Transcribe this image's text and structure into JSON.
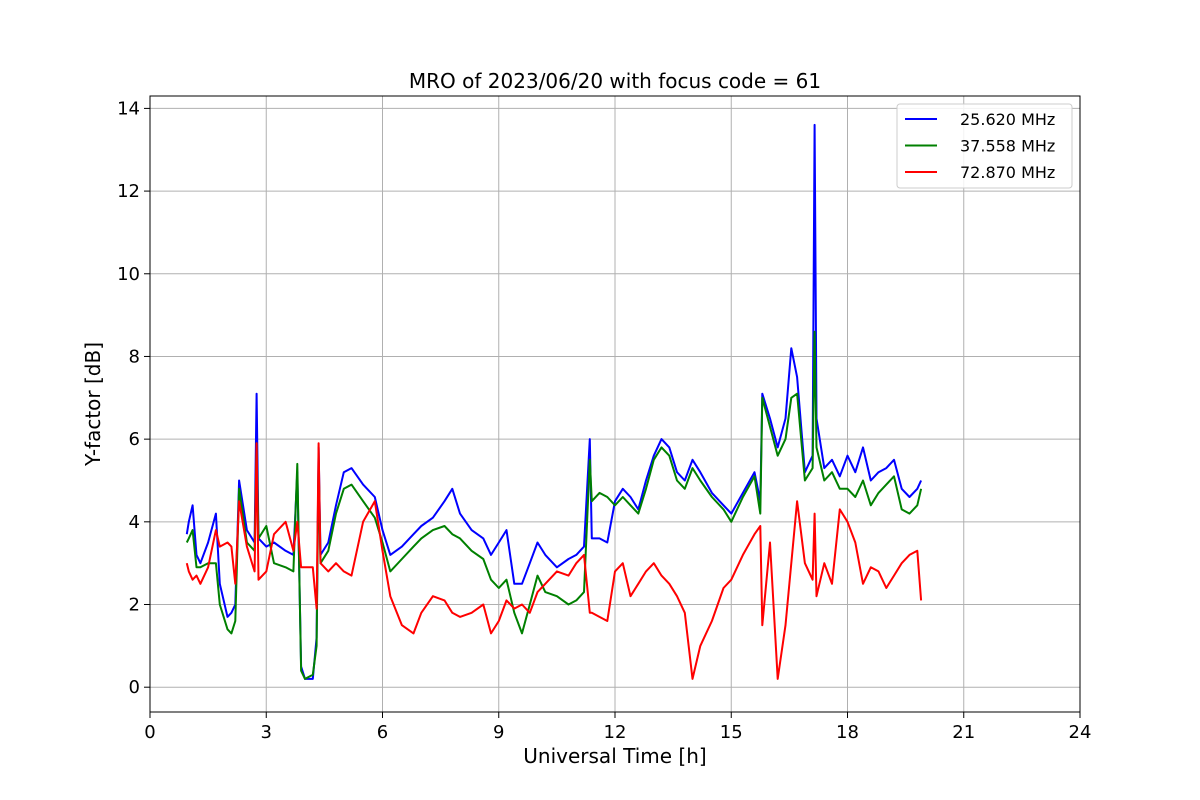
{
  "chart_data": {
    "type": "line",
    "title": "MRO of 2023/06/20 with focus code = 61",
    "xlabel": "Universal Time [h]",
    "ylabel": "Y-factor [dB]",
    "xlim": [
      0,
      24
    ],
    "ylim": [
      -0.6,
      14.3
    ],
    "xticks": [
      0,
      3,
      6,
      9,
      12,
      15,
      18,
      21,
      24
    ],
    "yticks": [
      0,
      2,
      4,
      6,
      8,
      10,
      12,
      14
    ],
    "grid": true,
    "legend_position": "top-right",
    "series": [
      {
        "name": "25.620 MHz",
        "color": "#0000ff",
        "x": [
          0.95,
          1.0,
          1.1,
          1.2,
          1.3,
          1.5,
          1.7,
          1.8,
          2.0,
          2.1,
          2.2,
          2.3,
          2.5,
          2.7,
          2.75,
          2.8,
          3.0,
          3.2,
          3.5,
          3.7,
          3.8,
          3.9,
          4.0,
          4.2,
          4.3,
          4.35,
          4.4,
          4.6,
          4.8,
          5.0,
          5.2,
          5.5,
          5.8,
          6.0,
          6.2,
          6.5,
          6.8,
          7.0,
          7.3,
          7.6,
          7.8,
          8.0,
          8.3,
          8.6,
          8.8,
          9.0,
          9.2,
          9.4,
          9.6,
          9.8,
          10.0,
          10.2,
          10.5,
          10.8,
          11.0,
          11.2,
          11.35,
          11.4,
          11.6,
          11.8,
          12.0,
          12.2,
          12.4,
          12.6,
          12.8,
          13.0,
          13.2,
          13.4,
          13.6,
          13.8,
          14.0,
          14.2,
          14.5,
          14.8,
          15.0,
          15.3,
          15.6,
          15.75,
          15.8,
          16.0,
          16.2,
          16.4,
          16.55,
          16.7,
          16.9,
          17.1,
          17.15,
          17.2,
          17.4,
          17.6,
          17.8,
          18.0,
          18.2,
          18.4,
          18.6,
          18.8,
          19.0,
          19.2,
          19.4,
          19.6,
          19.8,
          19.9
        ],
        "values": [
          3.7,
          4.0,
          4.4,
          3.2,
          3.0,
          3.5,
          4.2,
          2.5,
          1.7,
          1.8,
          2.0,
          5.0,
          3.8,
          3.5,
          7.1,
          3.6,
          3.4,
          3.5,
          3.3,
          3.2,
          5.2,
          0.5,
          0.2,
          0.2,
          1.2,
          5.8,
          3.2,
          3.5,
          4.4,
          5.2,
          5.3,
          4.9,
          4.6,
          3.8,
          3.2,
          3.4,
          3.7,
          3.9,
          4.1,
          4.5,
          4.8,
          4.2,
          3.8,
          3.6,
          3.2,
          3.5,
          3.8,
          2.5,
          2.5,
          3.0,
          3.5,
          3.2,
          2.9,
          3.1,
          3.2,
          3.4,
          6.0,
          3.6,
          3.6,
          3.5,
          4.5,
          4.8,
          4.6,
          4.3,
          5.0,
          5.6,
          6.0,
          5.8,
          5.2,
          5.0,
          5.5,
          5.2,
          4.7,
          4.4,
          4.2,
          4.7,
          5.2,
          4.5,
          7.1,
          6.5,
          5.8,
          6.5,
          8.2,
          7.5,
          5.2,
          5.6,
          13.6,
          6.5,
          5.3,
          5.5,
          5.1,
          5.6,
          5.2,
          5.8,
          5.0,
          5.2,
          5.3,
          5.5,
          4.8,
          4.6,
          4.8,
          5.0
        ]
      },
      {
        "name": "37.558 MHz",
        "color": "#008000",
        "x": [
          0.95,
          1.0,
          1.1,
          1.2,
          1.3,
          1.5,
          1.7,
          1.8,
          2.0,
          2.1,
          2.2,
          2.3,
          2.5,
          2.7,
          2.75,
          2.8,
          3.0,
          3.2,
          3.5,
          3.7,
          3.8,
          3.9,
          4.0,
          4.2,
          4.3,
          4.35,
          4.4,
          4.6,
          4.8,
          5.0,
          5.2,
          5.5,
          5.8,
          6.0,
          6.2,
          6.5,
          6.8,
          7.0,
          7.3,
          7.6,
          7.8,
          8.0,
          8.3,
          8.6,
          8.8,
          9.0,
          9.2,
          9.4,
          9.6,
          9.8,
          10.0,
          10.2,
          10.5,
          10.8,
          11.0,
          11.2,
          11.35,
          11.4,
          11.6,
          11.8,
          12.0,
          12.2,
          12.4,
          12.6,
          12.8,
          13.0,
          13.2,
          13.4,
          13.6,
          13.8,
          14.0,
          14.2,
          14.5,
          14.8,
          15.0,
          15.3,
          15.6,
          15.75,
          15.8,
          16.0,
          16.2,
          16.4,
          16.55,
          16.7,
          16.9,
          17.1,
          17.15,
          17.2,
          17.4,
          17.6,
          17.8,
          18.0,
          18.2,
          18.4,
          18.6,
          18.8,
          19.0,
          19.2,
          19.4,
          19.6,
          19.8,
          19.9
        ],
        "values": [
          3.5,
          3.6,
          3.8,
          2.9,
          2.9,
          3.0,
          3.0,
          2.0,
          1.4,
          1.3,
          1.6,
          4.8,
          3.5,
          3.3,
          5.9,
          3.6,
          3.9,
          3.0,
          2.9,
          2.8,
          5.4,
          0.4,
          0.2,
          0.3,
          1.0,
          5.5,
          3.0,
          3.3,
          4.2,
          4.8,
          4.9,
          4.5,
          4.1,
          3.5,
          2.8,
          3.1,
          3.4,
          3.6,
          3.8,
          3.9,
          3.7,
          3.6,
          3.3,
          3.1,
          2.6,
          2.4,
          2.6,
          1.8,
          1.3,
          2.0,
          2.7,
          2.3,
          2.2,
          2.0,
          2.1,
          2.3,
          5.5,
          4.5,
          4.7,
          4.6,
          4.4,
          4.6,
          4.4,
          4.2,
          4.8,
          5.5,
          5.8,
          5.6,
          5.0,
          4.8,
          5.3,
          5.0,
          4.6,
          4.3,
          4.0,
          4.6,
          5.1,
          4.2,
          7.0,
          6.3,
          5.6,
          6.0,
          7.0,
          7.1,
          5.0,
          5.3,
          8.6,
          5.8,
          5.0,
          5.2,
          4.8,
          4.8,
          4.6,
          5.0,
          4.4,
          4.7,
          4.9,
          5.1,
          4.3,
          4.2,
          4.4,
          4.8
        ]
      },
      {
        "name": "72.870 MHz",
        "color": "#ff0000",
        "x": [
          0.95,
          1.0,
          1.1,
          1.2,
          1.3,
          1.5,
          1.7,
          1.8,
          2.0,
          2.1,
          2.2,
          2.3,
          2.5,
          2.7,
          2.75,
          2.8,
          3.0,
          3.2,
          3.5,
          3.7,
          3.8,
          3.9,
          4.0,
          4.2,
          4.3,
          4.35,
          4.4,
          4.6,
          4.8,
          5.0,
          5.2,
          5.5,
          5.8,
          6.0,
          6.2,
          6.5,
          6.8,
          7.0,
          7.3,
          7.6,
          7.8,
          8.0,
          8.3,
          8.6,
          8.8,
          9.0,
          9.2,
          9.4,
          9.6,
          9.8,
          10.0,
          10.2,
          10.5,
          10.8,
          11.0,
          11.2,
          11.35,
          11.4,
          11.6,
          11.8,
          12.0,
          12.2,
          12.4,
          12.6,
          12.8,
          13.0,
          13.2,
          13.4,
          13.6,
          13.8,
          14.0,
          14.2,
          14.5,
          14.8,
          15.0,
          15.3,
          15.6,
          15.75,
          15.8,
          16.0,
          16.2,
          16.4,
          16.55,
          16.7,
          16.9,
          17.1,
          17.15,
          17.2,
          17.4,
          17.6,
          17.8,
          18.0,
          18.2,
          18.4,
          18.6,
          18.8,
          19.0,
          19.2,
          19.4,
          19.6,
          19.8,
          19.9
        ],
        "values": [
          3.0,
          2.8,
          2.6,
          2.7,
          2.5,
          2.9,
          3.8,
          3.4,
          3.5,
          3.4,
          2.5,
          4.5,
          3.4,
          2.8,
          5.9,
          2.6,
          2.8,
          3.7,
          4.0,
          3.3,
          4.0,
          2.9,
          2.9,
          2.9,
          1.9,
          5.9,
          3.0,
          2.8,
          3.0,
          2.8,
          2.7,
          4.0,
          4.5,
          3.3,
          2.2,
          1.5,
          1.3,
          1.8,
          2.2,
          2.1,
          1.8,
          1.7,
          1.8,
          2.0,
          1.3,
          1.6,
          2.1,
          1.9,
          2.0,
          1.8,
          2.3,
          2.5,
          2.8,
          2.7,
          3.0,
          3.2,
          1.8,
          1.8,
          1.7,
          1.6,
          2.8,
          3.0,
          2.2,
          2.5,
          2.8,
          3.0,
          2.7,
          2.5,
          2.2,
          1.8,
          0.2,
          1.0,
          1.6,
          2.4,
          2.6,
          3.2,
          3.7,
          3.9,
          1.5,
          3.5,
          0.2,
          1.5,
          3.0,
          4.5,
          3.0,
          2.6,
          4.2,
          2.2,
          3.0,
          2.5,
          4.3,
          4.0,
          3.5,
          2.5,
          2.9,
          2.8,
          2.4,
          2.7,
          3.0,
          3.2,
          3.3,
          2.1
        ]
      }
    ]
  }
}
